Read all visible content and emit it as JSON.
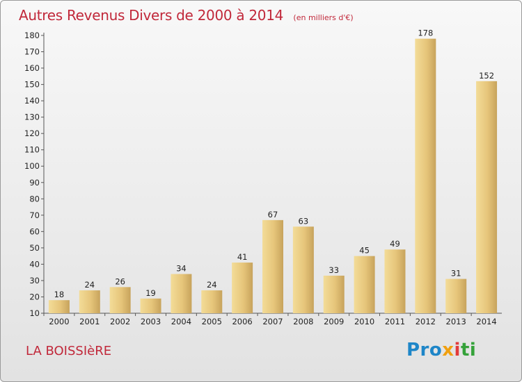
{
  "chart_data": {
    "type": "bar",
    "title": "Autres Revenus Divers de 2000 à 2014",
    "subtitle": "(en milliers d'€)",
    "categories": [
      "2000",
      "2001",
      "2002",
      "2003",
      "2004",
      "2005",
      "2006",
      "2007",
      "2008",
      "2009",
      "2010",
      "2011",
      "2012",
      "2013",
      "2014"
    ],
    "values": [
      18,
      24,
      26,
      19,
      34,
      24,
      41,
      67,
      63,
      33,
      45,
      49,
      178,
      31,
      152
    ],
    "xlabel": "",
    "ylabel": "",
    "ylim": [
      10,
      180
    ],
    "yticks": [
      10,
      20,
      30,
      40,
      50,
      60,
      70,
      80,
      90,
      100,
      110,
      120,
      130,
      140,
      150,
      160,
      170,
      180
    ],
    "grid": false,
    "bar_color": "#e8c878"
  },
  "location": "LA BOISSIèRE",
  "logo": {
    "p1": "Pro",
    "p2": "x",
    "p3": "i",
    "p4": "ti"
  }
}
